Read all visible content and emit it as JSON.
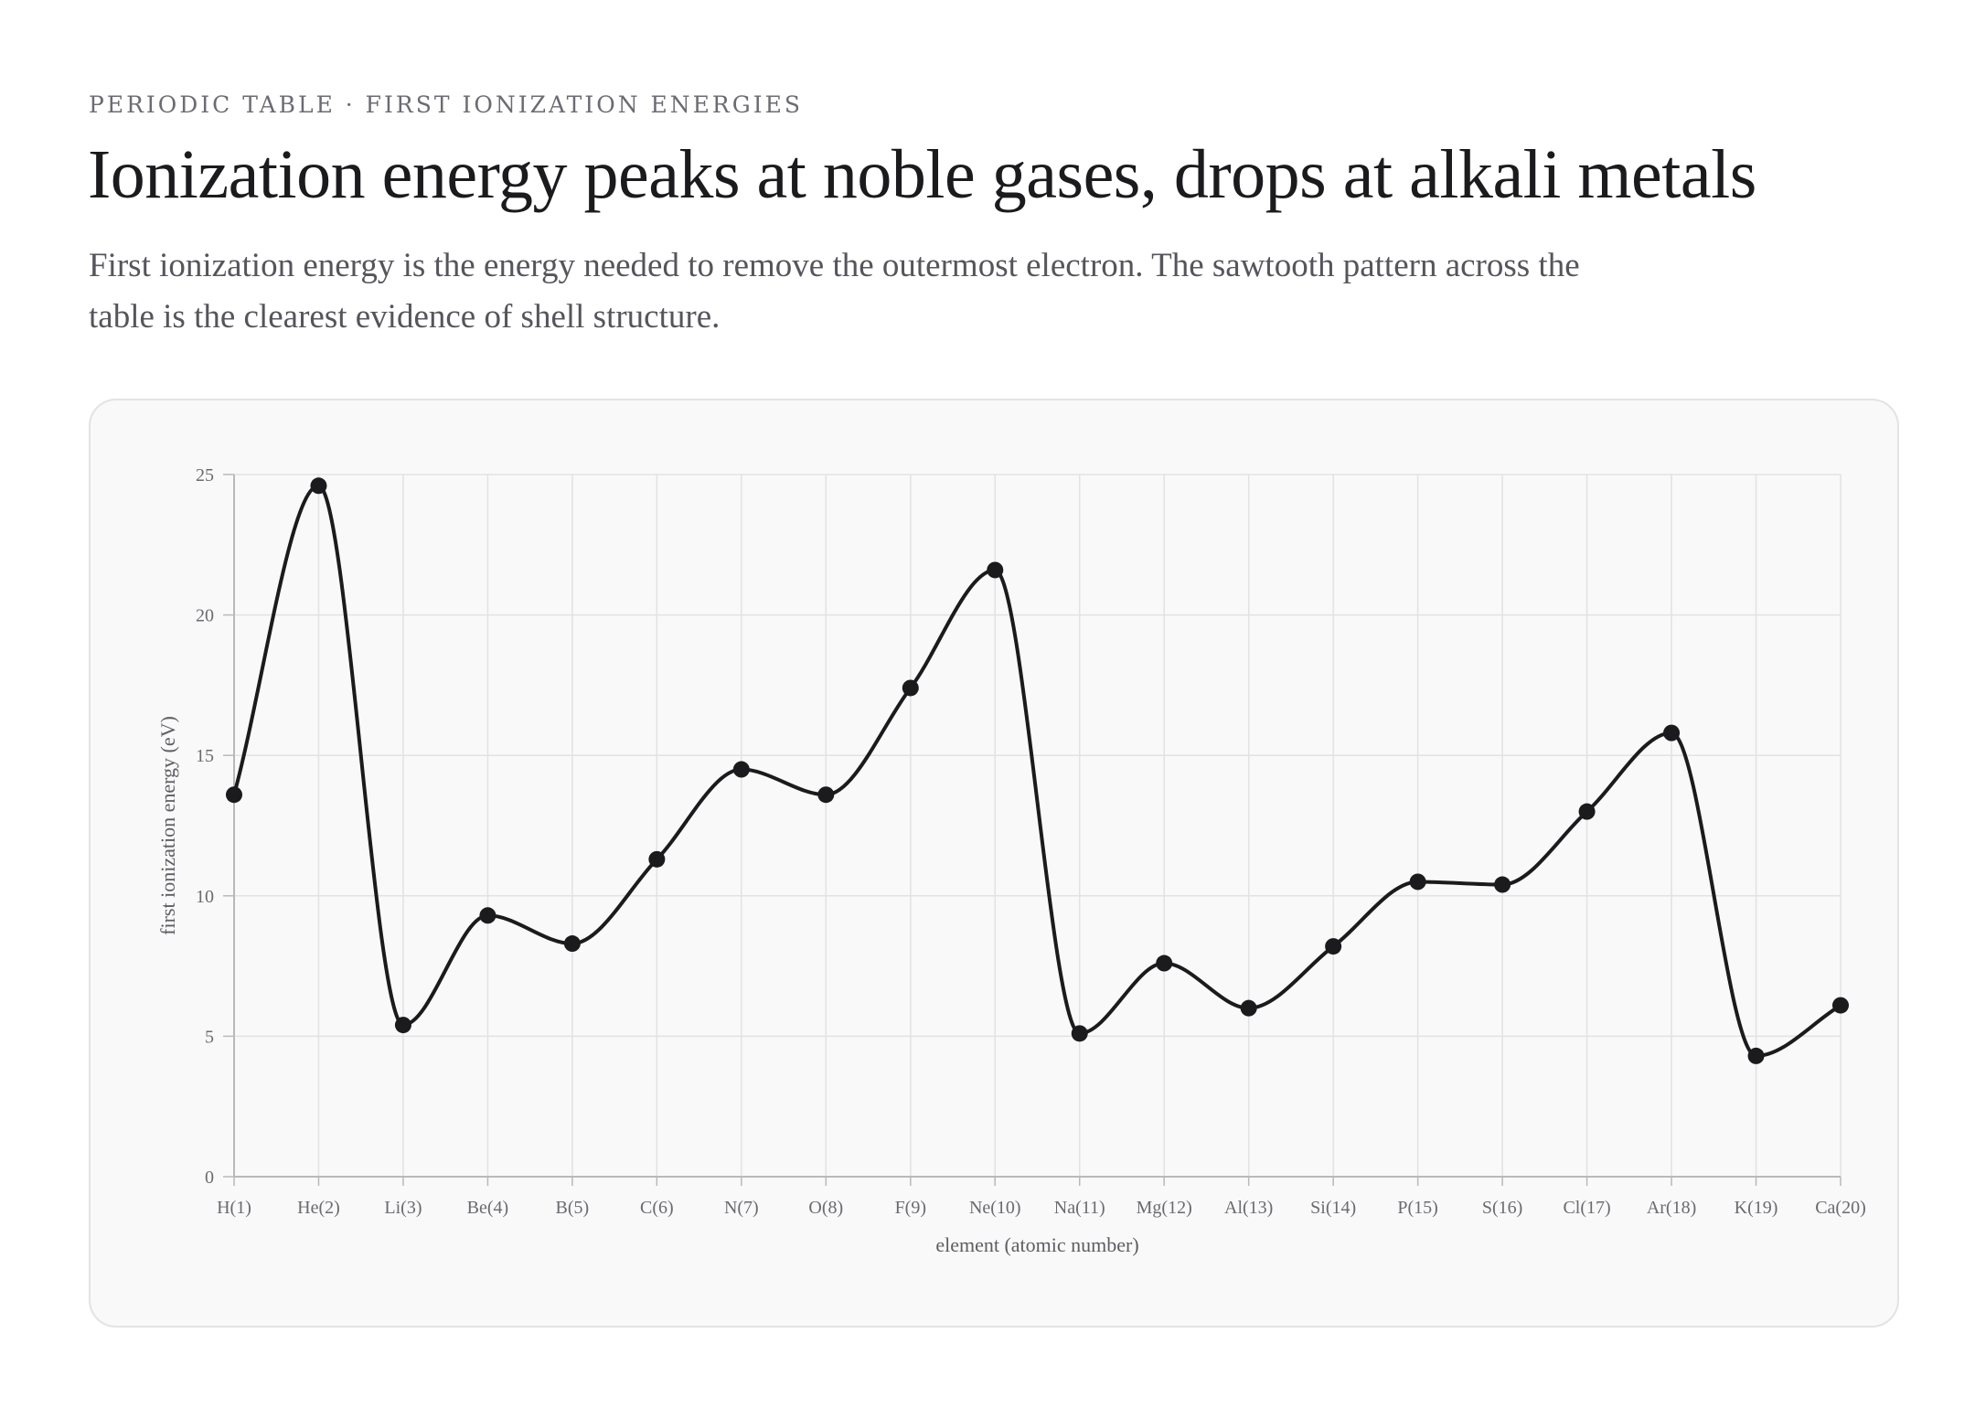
{
  "header": {
    "eyebrow": "PERIODIC TABLE · FIRST IONIZATION ENERGIES",
    "title": "Ionization energy peaks at noble gases, drops at alkali metals",
    "subtitle": "First ionization energy is the energy needed to remove the outermost electron. The sawtooth pattern across the table is the clearest evidence of shell structure."
  },
  "chart_data": {
    "type": "line",
    "categories": [
      "H(1)",
      "He(2)",
      "Li(3)",
      "Be(4)",
      "B(5)",
      "C(6)",
      "N(7)",
      "O(8)",
      "F(9)",
      "Ne(10)",
      "Na(11)",
      "Mg(12)",
      "Al(13)",
      "Si(14)",
      "P(15)",
      "S(16)",
      "Cl(17)",
      "Ar(18)",
      "K(19)",
      "Ca(20)"
    ],
    "values": [
      13.6,
      24.6,
      5.4,
      9.3,
      8.3,
      11.3,
      14.5,
      13.6,
      17.4,
      21.6,
      5.1,
      7.6,
      6.0,
      8.2,
      10.5,
      10.4,
      13.0,
      15.8,
      4.3,
      6.1
    ],
    "xlabel": "element (atomic number)",
    "ylabel": "first ionization energy (eV)",
    "ylim": [
      0,
      25
    ],
    "yticks": [
      0,
      5,
      10,
      15,
      20,
      25
    ],
    "grid": true,
    "smooth": true,
    "colors": {
      "line": "#1b1b1e",
      "marker": "#1b1b1e",
      "grid": "#e2e2e4",
      "axis": "#b9b9bd"
    }
  }
}
